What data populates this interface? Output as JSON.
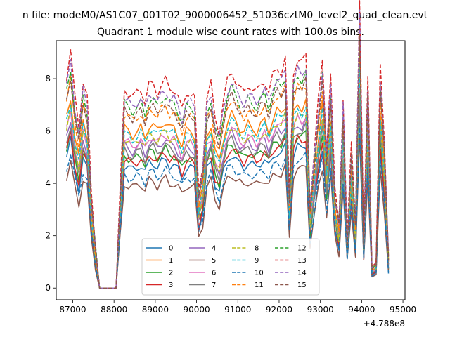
{
  "figure": {
    "suptitle": "n file: modeM0/AS1C07_001T02_9000006452_51036cztM0_level2_quad_clean.evt"
  },
  "chart_data": {
    "type": "line",
    "title": "Quadrant 1 module wise count rates with 100.0s bins.",
    "xlabel": "",
    "ylabel": "",
    "x_offset_label": "+4.788e8",
    "xlim": [
      86600,
      95050
    ],
    "ylim": [
      -0.45,
      9.45
    ],
    "xticks": [
      87000,
      88000,
      89000,
      90000,
      91000,
      92000,
      93000,
      94000,
      95000
    ],
    "xtick_labels": [
      "87000",
      "88000",
      "89000",
      "90000",
      "91000",
      "92000",
      "93000",
      "94000",
      "95000"
    ],
    "yticks": [
      0,
      2,
      4,
      6,
      8
    ],
    "ytick_labels": [
      "0",
      "2",
      "4",
      "6",
      "8"
    ],
    "grid": false,
    "legend": {
      "placement": "lower-center",
      "ncol": 4
    },
    "x": [
      86850,
      86950,
      87050,
      87150,
      87250,
      87350,
      87450,
      87550,
      87650,
      87750,
      87850,
      87950,
      88050,
      88150,
      88250,
      88350,
      88450,
      88550,
      88650,
      88750,
      88850,
      88950,
      89050,
      89150,
      89250,
      89350,
      89450,
      89550,
      89650,
      89750,
      89850,
      89950,
      90050,
      90150,
      90250,
      90350,
      90450,
      90550,
      90650,
      90750,
      90850,
      90950,
      91050,
      91150,
      91250,
      91350,
      91450,
      91550,
      91650,
      91750,
      91850,
      91950,
      92050,
      92150,
      92250,
      92350,
      92450,
      92550,
      92650,
      92750,
      92850,
      92950,
      93050,
      93150,
      93250,
      93350,
      93450,
      93550,
      93650,
      93750,
      93850,
      93950,
      94050,
      94150,
      94250,
      94350,
      94450,
      94550,
      94650
    ],
    "base": [
      5.0,
      5.6,
      4.5,
      3.8,
      4.9,
      4.5,
      2.2,
      1.0,
      0,
      0,
      0,
      0,
      0,
      2.3,
      4.7,
      4.6,
      4.5,
      4.6,
      4.7,
      4.4,
      4.8,
      4.8,
      4.6,
      4.8,
      4.9,
      4.7,
      4.7,
      4.5,
      4.2,
      4.6,
      4.6,
      4.5,
      2.3,
      2.9,
      4.5,
      4.8,
      4.0,
      3.7,
      4.4,
      4.9,
      5.1,
      4.9,
      4.7,
      4.6,
      4.8,
      4.7,
      4.6,
      4.8,
      4.9,
      4.6,
      5.0,
      5.2,
      5.1,
      5.4,
      2.2,
      5.1,
      5.4,
      5.3,
      5.5,
      2.0,
      3.2,
      4.4,
      5.4,
      3.3,
      5.0,
      2.3,
      1.6,
      4.5,
      1.1,
      3.4,
      1.6,
      6.8,
      1.1,
      5.0,
      0.5,
      0.6,
      5.2,
      3.5,
      0.8
    ],
    "series": [
      {
        "name": "0",
        "color": "#1f77b4",
        "dashed": false,
        "scale": 1.0
      },
      {
        "name": "1",
        "color": "#ff7f0e",
        "dashed": false,
        "scale": 1.3
      },
      {
        "name": "2",
        "color": "#2ca02c",
        "dashed": false,
        "scale": 1.08
      },
      {
        "name": "3",
        "color": "#d62728",
        "dashed": false,
        "scale": 1.05
      },
      {
        "name": "4",
        "color": "#9467bd",
        "dashed": false,
        "scale": 1.16
      },
      {
        "name": "5",
        "color": "#8c564b",
        "dashed": false,
        "scale": 0.85
      },
      {
        "name": "6",
        "color": "#e377c2",
        "dashed": false,
        "scale": 1.2
      },
      {
        "name": "7",
        "color": "#7f7f7f",
        "dashed": false,
        "scale": 1.12
      },
      {
        "name": "8",
        "color": "#bcbd22",
        "dashed": true,
        "scale": 1.22
      },
      {
        "name": "9",
        "color": "#17becf",
        "dashed": true,
        "scale": 1.26
      },
      {
        "name": "10",
        "color": "#1f77b4",
        "dashed": true,
        "scale": 0.92
      },
      {
        "name": "11",
        "color": "#ff7f0e",
        "dashed": true,
        "scale": 1.42
      },
      {
        "name": "12",
        "color": "#2ca02c",
        "dashed": true,
        "scale": 1.5
      },
      {
        "name": "13",
        "color": "#d62728",
        "dashed": true,
        "scale": 1.62
      },
      {
        "name": "14",
        "color": "#9467bd",
        "dashed": true,
        "scale": 1.54
      },
      {
        "name": "15",
        "color": "#8c564b",
        "dashed": true,
        "scale": 1.44
      }
    ]
  }
}
